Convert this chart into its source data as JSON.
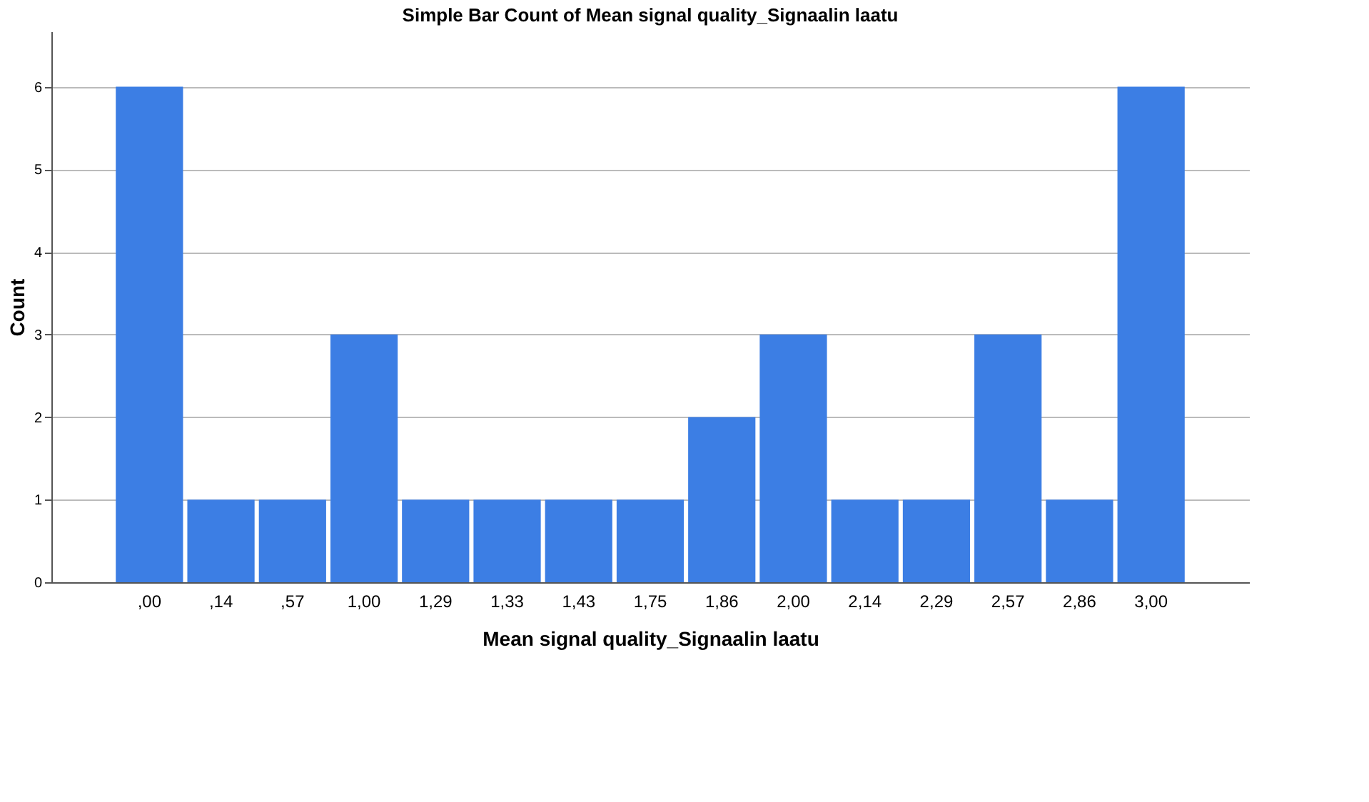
{
  "chart_data": {
    "type": "bar",
    "title": "Simple Bar Count of Mean signal quality_Signaalin laatu",
    "xlabel": "Mean signal quality_Signaalin laatu",
    "ylabel": "Count",
    "categories": [
      ",00",
      ",14",
      ",57",
      "1,00",
      "1,29",
      "1,33",
      "1,43",
      "1,75",
      "1,86",
      "2,00",
      "2,14",
      "2,29",
      "2,57",
      "2,86",
      "3,00"
    ],
    "values": [
      6,
      1,
      1,
      3,
      1,
      1,
      1,
      1,
      2,
      3,
      1,
      1,
      3,
      1,
      6
    ],
    "color": "#3c7ee4",
    "ylim": [
      0,
      6.67
    ],
    "yticks": [
      0,
      1,
      2,
      3,
      4,
      5,
      6
    ],
    "grid": "y"
  }
}
